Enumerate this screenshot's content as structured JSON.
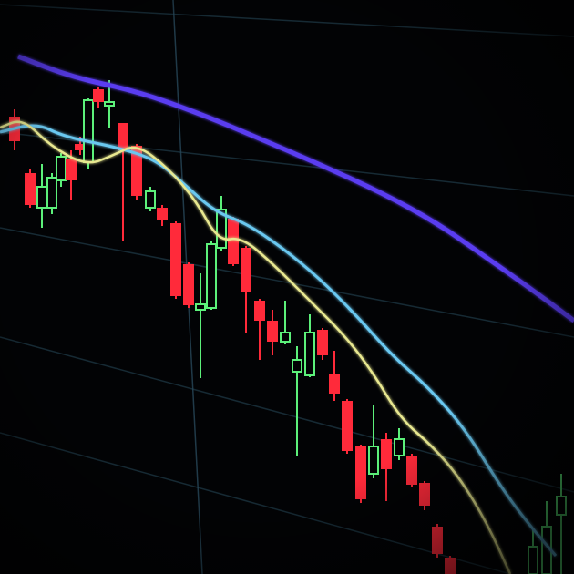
{
  "scene": {
    "subject": "candlestick-chart-on-screen",
    "colors": {
      "background": "#020305",
      "bullish": "#5cf07a",
      "bearish": "#ff2a3a",
      "slow_average": "#5a3cf0",
      "mid_average": "#6ac8f0",
      "fast_average": "#e8e890",
      "grid": "#1c3440"
    }
  }
}
